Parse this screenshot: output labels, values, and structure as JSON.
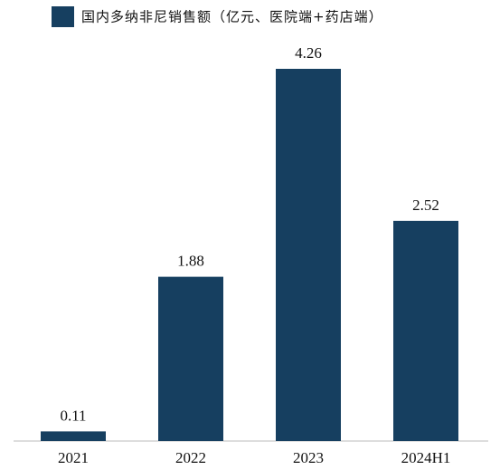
{
  "chart_data": {
    "type": "bar",
    "categories": [
      "2021",
      "2022",
      "2023",
      "2024H1"
    ],
    "series": [
      {
        "name": "国内多纳非尼销售额（亿元、医院端+药店端）",
        "color": "#163f60",
        "values": [
          0.11,
          1.88,
          4.26,
          2.52
        ]
      }
    ]
  }
}
